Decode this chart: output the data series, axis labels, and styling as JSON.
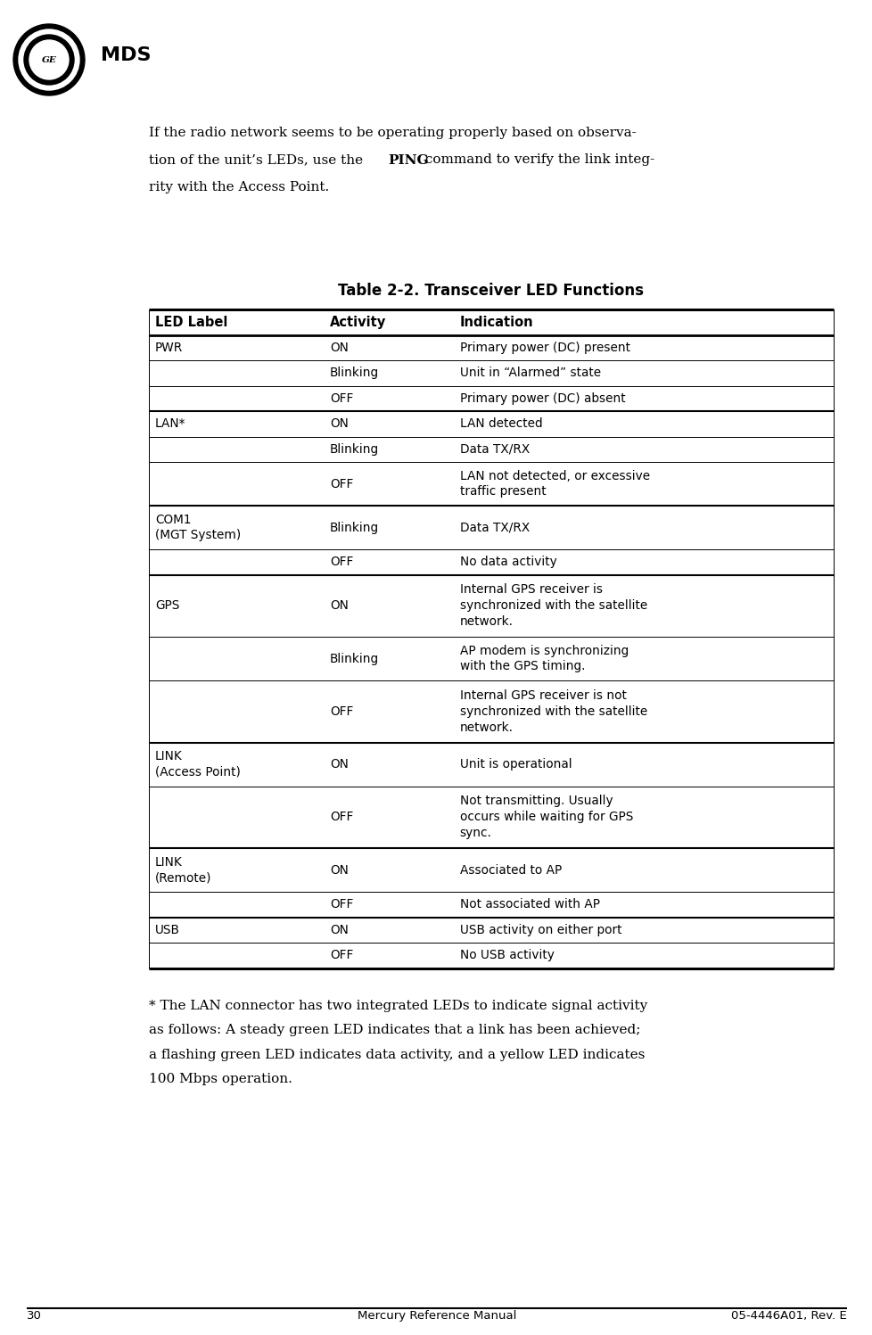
{
  "page_number": "30",
  "footer_left": "Mercury Reference Manual",
  "footer_right": "05-4446A01, Rev. E",
  "table_title": "Table 2-2. Transceiver LED Functions",
  "col_headers": [
    "LED Label",
    "Activity",
    "Indication"
  ],
  "rows": [
    {
      "label": "PWR",
      "activity": "ON",
      "indication": "Primary power (DC) present",
      "group_start": true,
      "ind_lines": 1,
      "lbl_lines": 1
    },
    {
      "label": "",
      "activity": "Blinking",
      "indication": "Unit in “Alarmed” state",
      "group_start": false,
      "ind_lines": 1,
      "lbl_lines": 1
    },
    {
      "label": "",
      "activity": "OFF",
      "indication": "Primary power (DC) absent",
      "group_start": false,
      "ind_lines": 1,
      "lbl_lines": 1
    },
    {
      "label": "LAN*",
      "activity": "ON",
      "indication": "LAN detected",
      "group_start": true,
      "ind_lines": 1,
      "lbl_lines": 1
    },
    {
      "label": "",
      "activity": "Blinking",
      "indication": "Data TX/RX",
      "group_start": false,
      "ind_lines": 1,
      "lbl_lines": 1
    },
    {
      "label": "",
      "activity": "OFF",
      "indication": "LAN not detected, or excessive\ntraffic present",
      "group_start": false,
      "ind_lines": 2,
      "lbl_lines": 1
    },
    {
      "label": "COM1\n(MGT System)",
      "activity": "Blinking",
      "indication": "Data TX/RX",
      "group_start": true,
      "ind_lines": 1,
      "lbl_lines": 2
    },
    {
      "label": "",
      "activity": "OFF",
      "indication": "No data activity",
      "group_start": false,
      "ind_lines": 1,
      "lbl_lines": 1
    },
    {
      "label": "GPS",
      "activity": "ON",
      "indication": "Internal GPS receiver is\nsynchronized with the satellite\nnetwork.",
      "group_start": true,
      "ind_lines": 3,
      "lbl_lines": 1
    },
    {
      "label": "",
      "activity": "Blinking",
      "indication": "AP modem is synchronizing\nwith the GPS timing.",
      "group_start": false,
      "ind_lines": 2,
      "lbl_lines": 1
    },
    {
      "label": "",
      "activity": "OFF",
      "indication": "Internal GPS receiver is not\nsynchronized with the satellite\nnetwork.",
      "group_start": false,
      "ind_lines": 3,
      "lbl_lines": 1
    },
    {
      "label": "LINK\n(Access Point)",
      "activity": "ON",
      "indication": "Unit is operational",
      "group_start": true,
      "ind_lines": 1,
      "lbl_lines": 2
    },
    {
      "label": "",
      "activity": "OFF",
      "indication": "Not transmitting. Usually\noccurs while waiting for GPS\nsync.",
      "group_start": false,
      "ind_lines": 3,
      "lbl_lines": 1
    },
    {
      "label": "LINK\n(Remote)",
      "activity": "ON",
      "indication": "Associated to AP",
      "group_start": true,
      "ind_lines": 1,
      "lbl_lines": 2
    },
    {
      "label": "",
      "activity": "OFF",
      "indication": "Not associated with AP",
      "group_start": false,
      "ind_lines": 1,
      "lbl_lines": 1
    },
    {
      "label": "USB",
      "activity": "ON",
      "indication": "USB activity on either port",
      "group_start": true,
      "ind_lines": 1,
      "lbl_lines": 1
    },
    {
      "label": "",
      "activity": "OFF",
      "indication": "No USB activity",
      "group_start": false,
      "ind_lines": 1,
      "lbl_lines": 1
    }
  ],
  "footnote_lines": [
    "* The LAN connector has two integrated LEDs to indicate signal activity",
    "as follows: A steady green LED indicates that a link has been achieved;",
    "a flashing green LED indicates data activity, and a yellow LED indicates",
    "100 Mbps operation."
  ],
  "bg_color": "#ffffff",
  "text_color": "#000000",
  "intro_line1": "If the radio network seems to be operating properly based on observa-",
  "intro_line2_pre": "tion of the unit’s LEDs, use the ",
  "intro_line2_bold": "PING",
  "intro_line2_post": " command to verify the link integ-",
  "intro_line3": "rity with the Access Point."
}
